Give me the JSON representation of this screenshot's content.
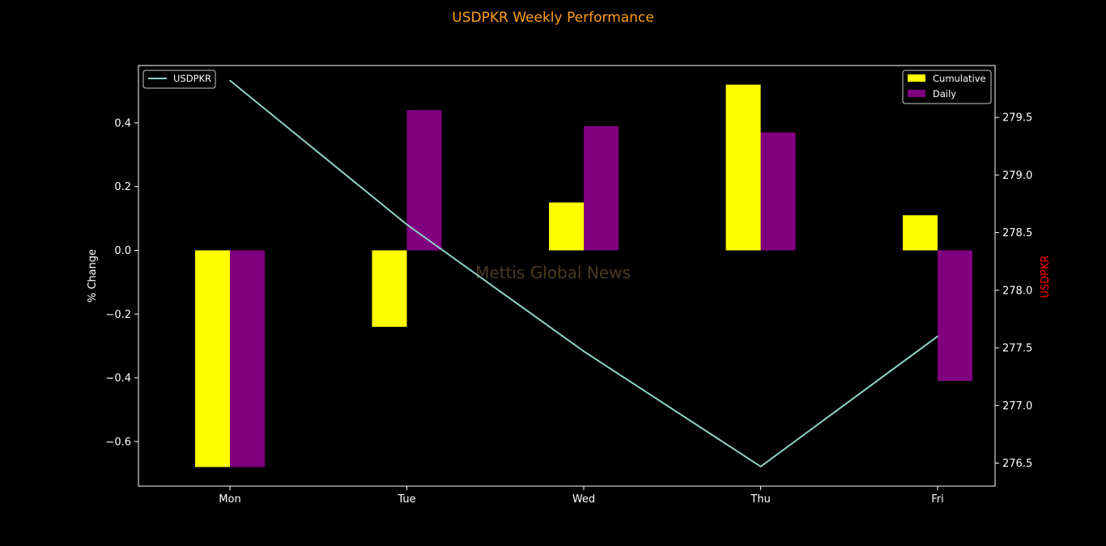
{
  "chart_data": {
    "type": "bar",
    "title": "USDPKR Weekly Performance",
    "watermark": "Mettis Global News",
    "categories": [
      "Mon",
      "Tue",
      "Wed",
      "Thu",
      "Fri"
    ],
    "series": [
      {
        "name": "Cumulative",
        "type": "bar",
        "axis": "left",
        "color": "#ffff00",
        "values": [
          -0.68,
          -0.24,
          0.15,
          0.52,
          0.11
        ]
      },
      {
        "name": "Daily",
        "type": "bar",
        "axis": "left",
        "color": "#800080",
        "values": [
          -0.68,
          0.44,
          0.39,
          0.37,
          -0.41
        ]
      },
      {
        "name": "USDPKR",
        "type": "line",
        "axis": "right",
        "color": "#8dd3c7",
        "values": [
          279.82,
          278.57,
          277.47,
          276.47,
          277.6
        ]
      }
    ],
    "ylabel": "% Change",
    "y2label": "USDPKR",
    "ylim": [
      -0.74,
      0.58
    ],
    "y2lim": [
      276.3,
      279.95
    ],
    "yticks": [
      "-0.6",
      "-0.4",
      "-0.2",
      "0.0",
      "0.2",
      "0.4"
    ],
    "y2ticks": [
      "276.5",
      "277.0",
      "277.5",
      "278.0",
      "278.5",
      "279.0",
      "279.5"
    ],
    "legend_left": {
      "placement": "upper-left",
      "entries": [
        "USDPKR"
      ]
    },
    "legend_right": {
      "placement": "upper-right",
      "entries": [
        "Cumulative",
        "Daily"
      ]
    },
    "colors": {
      "background": "#000000",
      "title": "#ff9f1c",
      "y2label": "#ff0000",
      "watermark": "#4a3a22",
      "axes": "#ffffff"
    },
    "grid": false
  }
}
